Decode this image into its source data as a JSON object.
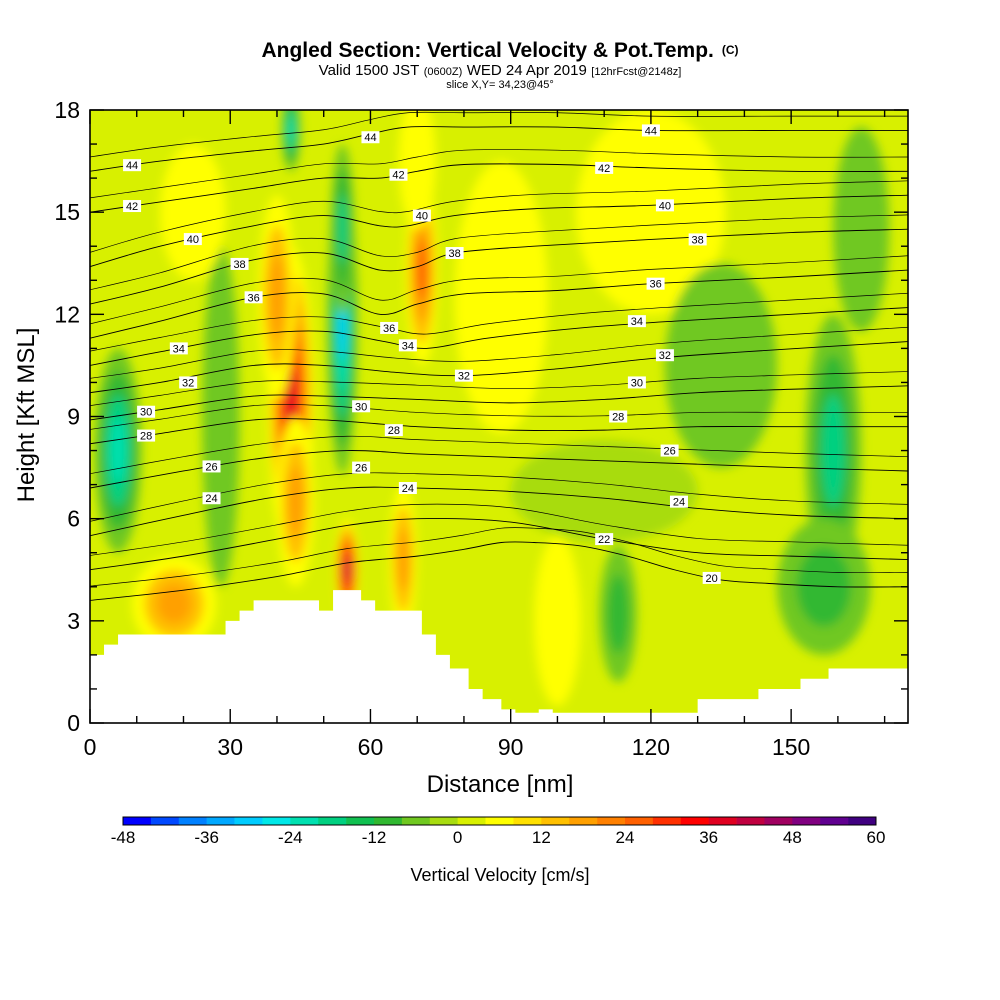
{
  "chart_data": {
    "type": "heatmap",
    "title": "Angled Section: Vertical Velocity & Pot.Temp.",
    "title_unit": "(C)",
    "subtitle": {
      "prefix": "Valid 1500 JST",
      "utc": "(0600Z)",
      "date": "WED 24 Apr 2019",
      "forecast": "[12hrFcst@2148z]"
    },
    "slice_label": "slice X,Y= 34,23@45°",
    "xlabel": "Distance [nm]",
    "ylabel": "Height [Kft MSL]",
    "xlim": [
      0,
      175
    ],
    "ylim": [
      0,
      18
    ],
    "x_ticks": [
      0,
      30,
      60,
      90,
      120,
      150
    ],
    "y_ticks": [
      0,
      3,
      6,
      9,
      12,
      15,
      18
    ],
    "colorbar": {
      "label": "Vertical Velocity [cm/s]",
      "min": -48,
      "max": 60,
      "step": 4,
      "tick_labels": [
        -48,
        -36,
        -24,
        -12,
        0,
        12,
        24,
        36,
        48,
        60
      ],
      "colors": [
        "#0000ff",
        "#0048ff",
        "#0080ff",
        "#00a8ff",
        "#00ccff",
        "#00e8e8",
        "#00e0b0",
        "#00d080",
        "#10c050",
        "#30b830",
        "#70c820",
        "#a8dc10",
        "#d8f000",
        "#ffff00",
        "#ffe000",
        "#ffc000",
        "#ffa000",
        "#ff8000",
        "#ff6000",
        "#ff3000",
        "#ff0000",
        "#e00020",
        "#c00040",
        "#a00060",
        "#800080",
        "#600090",
        "#400080"
      ]
    },
    "velocity_features": [
      {
        "x": 43,
        "y": 9.5,
        "rx": 5,
        "ry": 4.5,
        "value": 40
      },
      {
        "x": 40,
        "y": 12.5,
        "rx": 4,
        "ry": 3,
        "value": 22
      },
      {
        "x": 44,
        "y": 6.5,
        "rx": 4,
        "ry": 2.5,
        "value": 18
      },
      {
        "x": 54,
        "y": 11.8,
        "rx": 3.2,
        "ry": 4.5,
        "value": -30
      },
      {
        "x": 54,
        "y": 14.5,
        "rx": 2.5,
        "ry": 2.5,
        "value": -22
      },
      {
        "x": 43,
        "y": 17.4,
        "rx": 2,
        "ry": 1.2,
        "value": -25
      },
      {
        "x": 55,
        "y": 4.5,
        "rx": 2.5,
        "ry": 1.5,
        "value": 42
      },
      {
        "x": 67,
        "y": 4.8,
        "rx": 3,
        "ry": 2.2,
        "value": 20
      },
      {
        "x": 71,
        "y": 13.3,
        "rx": 3.5,
        "ry": 2.8,
        "value": 25
      },
      {
        "x": 70,
        "y": 16.5,
        "rx": 4,
        "ry": 2,
        "value": 10
      },
      {
        "x": 6,
        "y": 8,
        "rx": 5,
        "ry": 3,
        "value": -24
      },
      {
        "x": 18,
        "y": 3.5,
        "rx": 9,
        "ry": 1.4,
        "value": 18
      },
      {
        "x": 28,
        "y": 9,
        "rx": 4,
        "ry": 5,
        "value": -8
      },
      {
        "x": 22,
        "y": 15,
        "rx": 7,
        "ry": 2,
        "value": 8
      },
      {
        "x": 159,
        "y": 8,
        "rx": 6,
        "ry": 4,
        "value": -20
      },
      {
        "x": 157,
        "y": 4,
        "rx": 10,
        "ry": 2,
        "value": -12
      },
      {
        "x": 100,
        "y": 3,
        "rx": 5,
        "ry": 2.5,
        "value": 10
      },
      {
        "x": 113,
        "y": 3.2,
        "rx": 4,
        "ry": 2,
        "value": -12
      },
      {
        "x": 88,
        "y": 12.5,
        "rx": 10,
        "ry": 4,
        "value": 8
      },
      {
        "x": 120,
        "y": 15,
        "rx": 16,
        "ry": 3,
        "value": 6
      },
      {
        "x": 135,
        "y": 10.5,
        "rx": 12,
        "ry": 3,
        "value": -6
      },
      {
        "x": 110,
        "y": 6.8,
        "rx": 20,
        "ry": 1.5,
        "value": -4
      },
      {
        "x": 165,
        "y": 14.5,
        "rx": 6,
        "ry": 3,
        "value": -7
      }
    ],
    "terrain": [
      [
        0,
        2
      ],
      [
        3,
        2
      ],
      [
        3,
        2.3
      ],
      [
        6,
        2.3
      ],
      [
        6,
        2.6
      ],
      [
        29,
        2.6
      ],
      [
        29,
        3
      ],
      [
        32,
        3
      ],
      [
        32,
        3.3
      ],
      [
        35,
        3.3
      ],
      [
        35,
        3.6
      ],
      [
        49,
        3.6
      ],
      [
        49,
        3.3
      ],
      [
        52,
        3.3
      ],
      [
        52,
        3.9
      ],
      [
        58,
        3.9
      ],
      [
        58,
        3.6
      ],
      [
        61,
        3.6
      ],
      [
        61,
        3.3
      ],
      [
        71,
        3.3
      ],
      [
        71,
        2.6
      ],
      [
        74,
        2.6
      ],
      [
        74,
        2
      ],
      [
        77,
        2
      ],
      [
        77,
        1.6
      ],
      [
        81,
        1.6
      ],
      [
        81,
        1
      ],
      [
        84,
        1
      ],
      [
        84,
        0.7
      ],
      [
        88,
        0.7
      ],
      [
        88,
        0.4
      ],
      [
        91,
        0.4
      ],
      [
        91,
        0.3
      ],
      [
        96,
        0.3
      ],
      [
        96,
        0.4
      ],
      [
        99,
        0.4
      ],
      [
        99,
        0.3
      ],
      [
        130,
        0.3
      ],
      [
        130,
        0.7
      ],
      [
        143,
        0.7
      ],
      [
        143,
        1
      ],
      [
        152,
        1
      ],
      [
        152,
        1.3
      ],
      [
        158,
        1.3
      ],
      [
        158,
        1.6
      ],
      [
        175,
        1.6
      ]
    ],
    "isentropes": [
      {
        "theta": 20,
        "x": [
          0,
          20,
          40,
          55,
          70,
          80,
          88,
          95,
          105,
          115,
          125,
          135,
          145,
          160,
          175
        ],
        "y": [
          3.6,
          3.9,
          4.3,
          4.7,
          4.9,
          5.1,
          5.3,
          5.3,
          5.2,
          4.9,
          4.5,
          4.2,
          4.1,
          4.0,
          4.0
        ],
        "label_x": 133
      },
      {
        "theta": 22,
        "x": [
          0,
          20,
          40,
          55,
          70,
          90,
          110,
          130,
          150,
          175
        ],
        "y": [
          4.5,
          4.9,
          5.4,
          5.8,
          6.0,
          5.9,
          5.4,
          5.0,
          4.9,
          4.8
        ],
        "label_x": 110
      },
      {
        "theta": 24,
        "x": [
          0,
          20,
          38,
          55,
          70,
          90,
          110,
          130,
          150,
          175
        ],
        "y": [
          5.5,
          6.1,
          6.6,
          6.9,
          6.9,
          6.8,
          6.6,
          6.3,
          6.1,
          6.0
        ],
        "label_x": 68
      },
      {
        "theta": 26,
        "x": [
          0,
          20,
          38,
          55,
          70,
          90,
          110,
          130,
          150,
          175
        ],
        "y": [
          6.9,
          7.4,
          7.8,
          8.0,
          7.9,
          7.8,
          7.7,
          7.6,
          7.5,
          7.4
        ],
        "label_x": 26
      },
      {
        "theta": 28,
        "x": [
          0,
          15,
          35,
          50,
          70,
          90,
          110,
          130,
          150,
          175
        ],
        "y": [
          8.2,
          8.5,
          8.9,
          8.9,
          8.7,
          8.6,
          8.6,
          8.7,
          8.7,
          8.7
        ],
        "label_x": 12
      },
      {
        "theta": 30,
        "x": [
          0,
          15,
          35,
          50,
          70,
          90,
          110,
          130,
          150,
          175
        ],
        "y": [
          8.9,
          9.2,
          9.6,
          9.6,
          9.5,
          9.4,
          9.5,
          9.7,
          9.8,
          9.9
        ],
        "label_x": 12
      },
      {
        "theta": 32,
        "x": [
          0,
          15,
          35,
          50,
          65,
          80,
          100,
          120,
          140,
          175
        ],
        "y": [
          9.7,
          10.0,
          10.5,
          10.5,
          10.3,
          10.2,
          10.4,
          10.7,
          10.9,
          11.2
        ],
        "label_x": 80
      },
      {
        "theta": 34,
        "x": [
          0,
          15,
          35,
          50,
          63,
          72,
          85,
          105,
          125,
          150,
          175
        ],
        "y": [
          10.5,
          10.9,
          11.4,
          11.5,
          11.2,
          11.0,
          11.3,
          11.6,
          11.8,
          12.0,
          12.2
        ],
        "label_x": 68
      },
      {
        "theta": 36,
        "x": [
          0,
          15,
          35,
          50,
          62,
          70,
          80,
          100,
          120,
          150,
          175
        ],
        "y": [
          11.3,
          11.8,
          12.5,
          12.6,
          12.0,
          12.3,
          12.6,
          12.7,
          12.9,
          13.1,
          13.3
        ],
        "label_x": 35
      },
      {
        "theta": 38,
        "x": [
          0,
          15,
          35,
          50,
          62,
          70,
          78,
          95,
          120,
          150,
          175
        ],
        "y": [
          12.3,
          12.8,
          13.6,
          13.8,
          13.3,
          13.4,
          13.8,
          14.0,
          14.2,
          14.4,
          14.5
        ],
        "label_x": 32
      },
      {
        "theta": 40,
        "x": [
          0,
          15,
          35,
          50,
          62,
          68,
          78,
          95,
          120,
          150,
          175
        ],
        "y": [
          13.4,
          14.0,
          14.6,
          14.9,
          14.6,
          14.6,
          14.9,
          15.1,
          15.2,
          15.4,
          15.5
        ],
        "label_x": 22
      },
      {
        "theta": 42,
        "x": [
          0,
          15,
          35,
          50,
          62,
          70,
          80,
          100,
          120,
          150,
          175
        ],
        "y": [
          15.0,
          15.3,
          15.7,
          16.0,
          16.0,
          16.2,
          16.4,
          16.4,
          16.3,
          16.2,
          16.2
        ],
        "label_x": 9
      },
      {
        "theta": 44,
        "x": [
          0,
          15,
          35,
          50,
          60,
          68,
          80,
          100,
          120,
          150,
          175
        ],
        "y": [
          16.2,
          16.5,
          16.8,
          17.0,
          17.3,
          17.5,
          17.5,
          17.5,
          17.4,
          17.4,
          17.4
        ],
        "label_x": 9
      }
    ],
    "extra_labels": [
      {
        "theta": 44,
        "x": 120,
        "y": 17.4
      },
      {
        "theta": 44,
        "x": 60,
        "y": 17.2
      },
      {
        "theta": 42,
        "x": 66,
        "y": 16.1
      },
      {
        "theta": 42,
        "x": 110,
        "y": 16.3
      },
      {
        "theta": 40,
        "x": 71,
        "y": 14.9
      },
      {
        "theta": 40,
        "x": 123,
        "y": 15.2
      },
      {
        "theta": 38,
        "x": 78,
        "y": 13.8
      },
      {
        "theta": 38,
        "x": 130,
        "y": 14.2
      },
      {
        "theta": 36,
        "x": 64,
        "y": 11.6
      },
      {
        "theta": 36,
        "x": 121,
        "y": 12.9
      },
      {
        "theta": 34,
        "x": 19,
        "y": 11.0
      },
      {
        "theta": 34,
        "x": 117,
        "y": 11.8
      },
      {
        "theta": 32,
        "x": 21,
        "y": 10.0
      },
      {
        "theta": 32,
        "x": 123,
        "y": 10.8
      },
      {
        "theta": 30,
        "x": 58,
        "y": 9.3
      },
      {
        "theta": 30,
        "x": 117,
        "y": 10.0
      },
      {
        "theta": 28,
        "x": 65,
        "y": 8.6
      },
      {
        "theta": 28,
        "x": 113,
        "y": 9.0
      },
      {
        "theta": 26,
        "x": 58,
        "y": 7.5
      },
      {
        "theta": 26,
        "x": 124,
        "y": 8.0
      },
      {
        "theta": 24,
        "x": 26,
        "y": 6.6
      },
      {
        "theta": 24,
        "x": 126,
        "y": 6.5
      }
    ]
  }
}
